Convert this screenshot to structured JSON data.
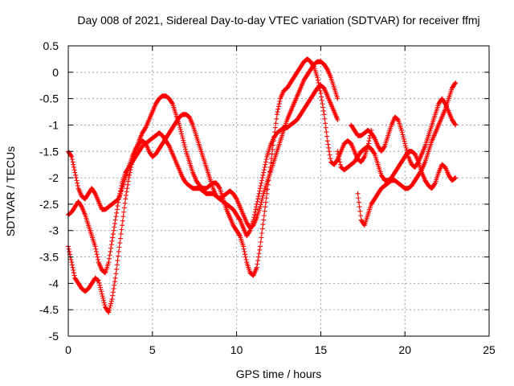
{
  "chart_data": {
    "type": "scatter",
    "title": "Day 008 of 2021, Sidereal Day-to-day VTEC variation (SDTVAR) for receiver ffmj",
    "xlabel": "GPS time / hours",
    "ylabel": "SDTVAR / TECUs",
    "xlim": [
      0,
      25
    ],
    "ylim": [
      -5,
      0.5
    ],
    "xticks": [
      0,
      5,
      10,
      15,
      20,
      25
    ],
    "xtick_labels": [
      "0",
      "5",
      "10",
      "15",
      "20",
      "25"
    ],
    "yticks": [
      0.5,
      0,
      -0.5,
      -1,
      -1.5,
      -2,
      -2.5,
      -3,
      -3.5,
      -4,
      -4.5,
      -5
    ],
    "ytick_labels": [
      "0.5",
      "0",
      "-0.5",
      "-1",
      "-1.5",
      "-2",
      "-2.5",
      "-3",
      "-3.5",
      "-4",
      "-4.5",
      "-5"
    ],
    "grid": true,
    "marker": "plus",
    "color": "#ff0000",
    "series": [
      {
        "x": [
          0.0,
          0.2,
          0.4,
          0.6,
          0.8,
          1.0,
          1.2,
          1.4,
          1.6,
          1.8,
          2.0,
          2.2,
          2.4,
          2.6,
          2.8,
          3.0,
          3.2,
          3.4,
          3.6,
          3.8,
          4.0,
          4.2,
          4.4,
          4.6,
          4.8,
          5.0,
          5.2,
          5.4,
          5.6,
          5.8,
          6.0,
          6.2,
          6.4,
          6.6,
          6.8,
          7.0,
          7.2,
          7.4,
          7.6,
          7.8,
          8.0,
          8.2,
          8.4,
          8.6,
          8.8,
          9.0,
          9.2,
          9.4,
          9.6,
          9.8,
          10.0,
          10.2,
          10.4,
          10.6,
          10.8,
          11.0,
          11.2,
          11.4,
          11.6,
          11.8,
          12.0,
          12.2,
          12.4,
          12.6,
          12.8,
          13.0,
          13.2,
          13.4,
          13.6,
          13.8,
          14.0,
          14.2,
          14.4,
          14.6,
          14.8,
          15.0,
          15.2,
          15.4,
          15.6,
          15.8,
          16.0,
          16.2,
          16.4,
          16.6,
          16.8,
          17.0,
          17.2,
          17.4,
          17.6,
          17.8,
          18.0
        ],
        "y": [
          -3.3,
          -3.6,
          -3.9,
          -4.0,
          -4.1,
          -4.15,
          -4.1,
          -4.0,
          -3.9,
          -3.95,
          -4.2,
          -4.45,
          -4.55,
          -4.3,
          -3.9,
          -3.4,
          -2.9,
          -2.4,
          -2.0,
          -1.7,
          -1.5,
          -1.3,
          -1.15,
          -1.05,
          -0.9,
          -0.75,
          -0.6,
          -0.5,
          -0.45,
          -0.45,
          -0.5,
          -0.6,
          -0.8,
          -1.0,
          -1.25,
          -1.5,
          -1.7,
          -1.9,
          -2.05,
          -2.15,
          -2.2,
          -2.2,
          -2.15,
          -2.1,
          -2.1,
          -2.2,
          -2.4,
          -2.6,
          -2.75,
          -2.9,
          -3.0,
          -3.1,
          -3.3,
          -3.6,
          -3.8,
          -3.85,
          -3.7,
          -3.3,
          -2.8,
          -2.3,
          -1.8,
          -1.3,
          -0.8,
          -0.5,
          -0.35,
          -0.3,
          -0.2,
          -0.1,
          0.0,
          0.1,
          0.2,
          0.25,
          0.2,
          0.1,
          -0.1,
          -0.4,
          -0.8,
          -1.3,
          -1.7,
          -1.75,
          -1.65,
          -1.5,
          -1.35,
          -1.3,
          -1.35,
          -1.5,
          -1.65,
          -1.7,
          -1.6,
          -1.4,
          -1.1
        ]
      },
      {
        "x": [
          0.0,
          0.2,
          0.4,
          0.6,
          0.8,
          1.0,
          1.2,
          1.4,
          1.6,
          1.8,
          2.0,
          2.2,
          2.4,
          2.6,
          2.8,
          3.0,
          3.2,
          3.4,
          3.6,
          3.8,
          4.0,
          4.2,
          4.4,
          4.6,
          4.8,
          5.0,
          5.2,
          5.4,
          5.6,
          5.8,
          6.0,
          6.2,
          6.4,
          6.6,
          6.8,
          7.0,
          7.2,
          7.4,
          7.6,
          7.8,
          8.0,
          8.2,
          8.4,
          8.6,
          8.8,
          9.0,
          9.2,
          9.4,
          9.6,
          9.8,
          10.0,
          10.2,
          10.4,
          10.6,
          10.8,
          11.0,
          11.2,
          11.4,
          11.6,
          11.8,
          12.0,
          12.2,
          12.4,
          12.6,
          12.8,
          13.0,
          13.2,
          13.4,
          13.6,
          13.8,
          14.0,
          14.2,
          14.4,
          14.6,
          14.8,
          15.0,
          15.2,
          15.4,
          15.6,
          15.8,
          16.0
        ],
        "y": [
          -2.7,
          -2.65,
          -2.55,
          -2.45,
          -2.55,
          -2.7,
          -2.9,
          -3.1,
          -3.3,
          -3.6,
          -3.75,
          -3.8,
          -3.6,
          -3.2,
          -2.8,
          -2.4,
          -2.1,
          -1.9,
          -1.8,
          -1.7,
          -1.6,
          -1.5,
          -1.4,
          -1.35,
          -1.3,
          -1.25,
          -1.2,
          -1.15,
          -1.2,
          -1.3,
          -1.4,
          -1.55,
          -1.7,
          -1.85,
          -2.0,
          -2.1,
          -2.15,
          -2.2,
          -2.2,
          -2.2,
          -2.25,
          -2.3,
          -2.3,
          -2.3,
          -2.35,
          -2.4,
          -2.45,
          -2.5,
          -2.55,
          -2.6,
          -2.7,
          -2.8,
          -2.95,
          -3.1,
          -3.0,
          -2.8,
          -2.5,
          -2.2,
          -1.9,
          -1.6,
          -1.4,
          -1.25,
          -1.15,
          -1.1,
          -1.05,
          -1.05,
          -1.0,
          -0.95,
          -0.9,
          -0.8,
          -0.7,
          -0.6,
          -0.5,
          -0.4,
          -0.3,
          -0.25,
          -0.3,
          -0.45,
          -0.6,
          -0.75,
          -0.9
        ]
      },
      {
        "x": [
          0.0,
          0.2,
          0.4,
          0.6,
          0.8,
          1.0,
          1.2,
          1.4,
          1.6,
          1.8,
          2.0,
          2.2,
          2.4,
          2.6,
          2.8,
          3.0,
          3.2,
          3.4,
          3.6,
          3.8,
          4.0,
          4.2,
          4.4,
          4.6,
          4.8,
          5.0,
          5.2,
          5.4,
          5.6,
          5.8,
          6.0,
          6.2,
          6.4,
          6.6,
          6.8,
          7.0,
          7.2,
          7.4,
          7.6,
          7.8,
          8.0,
          8.2,
          8.4,
          8.6,
          8.8,
          9.0,
          9.2,
          9.4,
          9.6,
          9.8,
          10.0,
          10.2,
          10.4,
          10.6,
          10.8,
          11.0,
          11.2,
          11.4,
          11.6,
          11.8,
          12.0,
          12.2,
          12.4,
          12.6,
          12.8,
          13.0,
          13.2,
          13.4,
          13.6,
          13.8,
          14.0,
          14.2,
          14.4,
          14.6,
          14.8,
          15.0,
          15.2,
          15.4,
          15.6,
          15.8,
          16.0
        ],
        "y": [
          -1.5,
          -1.6,
          -1.9,
          -2.2,
          -2.35,
          -2.4,
          -2.3,
          -2.2,
          -2.3,
          -2.45,
          -2.6,
          -2.6,
          -2.55,
          -2.5,
          -2.45,
          -2.4,
          -2.2,
          -2.0,
          -1.8,
          -1.6,
          -1.45,
          -1.35,
          -1.3,
          -1.35,
          -1.5,
          -1.6,
          -1.55,
          -1.45,
          -1.35,
          -1.25,
          -1.15,
          -1.05,
          -0.95,
          -0.85,
          -0.8,
          -0.8,
          -0.85,
          -1.0,
          -1.2,
          -1.4,
          -1.6,
          -1.8,
          -2.0,
          -2.2,
          -2.35,
          -2.4,
          -2.35,
          -2.3,
          -2.25,
          -2.3,
          -2.4,
          -2.55,
          -2.7,
          -2.85,
          -2.95,
          -2.9,
          -2.75,
          -2.55,
          -2.3,
          -2.1,
          -1.9,
          -1.7,
          -1.5,
          -1.3,
          -1.1,
          -0.9,
          -0.75,
          -0.6,
          -0.45,
          -0.3,
          -0.15,
          -0.05,
          0.05,
          0.15,
          0.2,
          0.2,
          0.15,
          0.05,
          -0.1,
          -0.3,
          -0.5
        ]
      },
      {
        "x": [
          16.0,
          16.2,
          16.4,
          16.6,
          16.8,
          17.0,
          17.2,
          17.4,
          17.6,
          17.8,
          18.0,
          18.2,
          18.4,
          18.6,
          18.8,
          19.0,
          19.2,
          19.4,
          19.6,
          19.8,
          20.0,
          20.2,
          20.4,
          20.6,
          20.8,
          21.0,
          21.2,
          21.4,
          21.6,
          21.8,
          22.0,
          22.2,
          22.4,
          22.6,
          22.8,
          23.0
        ],
        "y": [
          -1.5,
          -1.8,
          -1.85,
          -1.8,
          -1.75,
          -1.7,
          -1.6,
          -1.5,
          -1.45,
          -1.4,
          -1.45,
          -1.55,
          -1.75,
          -1.95,
          -2.05,
          -2.05,
          -2.0,
          -1.9,
          -1.8,
          -1.7,
          -1.6,
          -1.5,
          -1.5,
          -1.55,
          -1.7,
          -1.9,
          -2.05,
          -2.15,
          -2.2,
          -2.1,
          -1.9,
          -1.75,
          -1.8,
          -1.95,
          -2.05,
          -2.0
        ]
      },
      {
        "x": [
          17.2,
          17.4,
          17.6,
          17.8,
          18.0,
          18.2,
          18.4,
          18.6,
          18.8,
          19.0,
          19.2,
          19.4,
          19.6,
          19.8,
          20.0,
          20.2,
          20.4,
          20.6,
          20.8,
          21.0,
          21.2,
          21.4,
          21.6,
          21.8,
          22.0,
          22.2,
          22.4,
          22.6,
          22.8,
          23.0
        ],
        "y": [
          -2.3,
          -2.8,
          -2.9,
          -2.7,
          -2.5,
          -2.4,
          -2.3,
          -2.2,
          -2.15,
          -2.1,
          -2.05,
          -2.05,
          -2.1,
          -2.15,
          -2.2,
          -2.2,
          -2.15,
          -2.05,
          -1.95,
          -1.85,
          -1.7,
          -1.5,
          -1.3,
          -1.15,
          -1.0,
          -0.85,
          -0.7,
          -0.5,
          -0.3,
          -0.2
        ]
      },
      {
        "x": [
          16.8,
          17.0,
          17.2,
          17.4,
          17.6,
          17.8,
          18.0,
          18.2,
          18.4,
          18.6,
          18.8,
          19.0,
          19.2,
          19.4,
          19.6,
          19.8,
          20.0,
          20.2,
          20.4,
          20.6,
          20.8,
          21.0,
          21.2,
          21.4,
          21.6,
          21.8,
          22.0,
          22.2,
          22.4,
          22.6,
          22.8,
          23.0
        ],
        "y": [
          -1.0,
          -1.1,
          -1.2,
          -1.2,
          -1.15,
          -1.1,
          -1.15,
          -1.25,
          -1.4,
          -1.5,
          -1.4,
          -1.2,
          -1.0,
          -0.85,
          -0.9,
          -1.1,
          -1.35,
          -1.6,
          -1.75,
          -1.8,
          -1.7,
          -1.55,
          -1.4,
          -1.2,
          -1.0,
          -0.8,
          -0.6,
          -0.5,
          -0.6,
          -0.75,
          -0.9,
          -1.0
        ]
      }
    ]
  }
}
